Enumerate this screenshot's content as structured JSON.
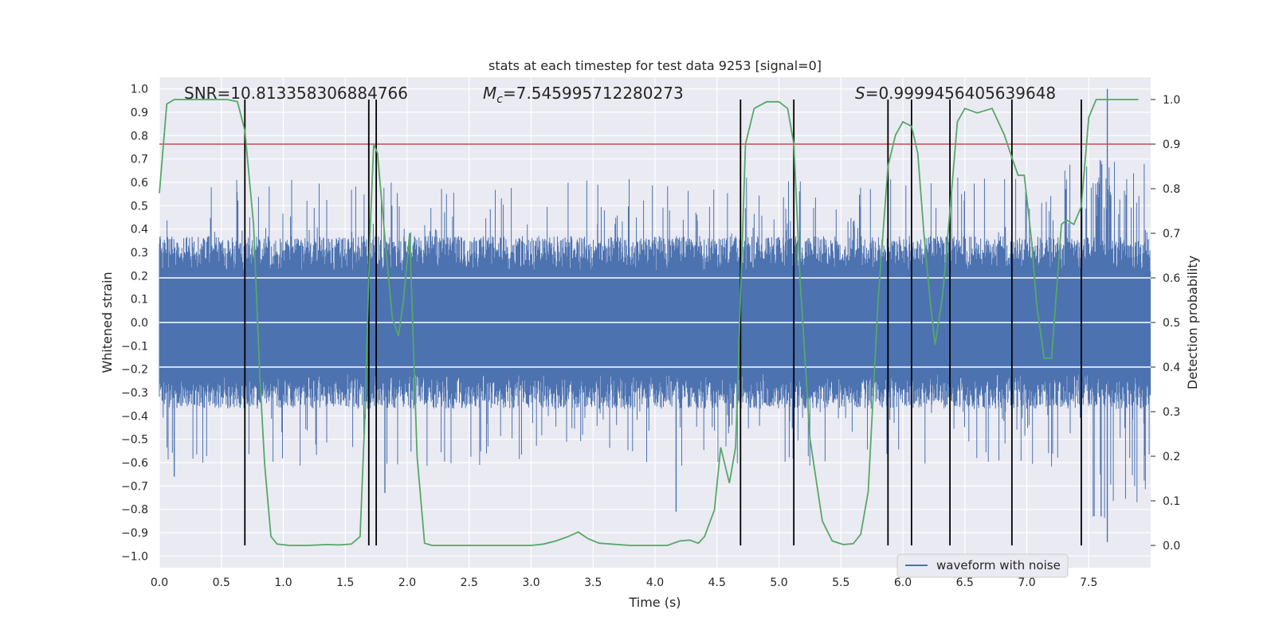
{
  "chart_data": {
    "type": "line",
    "title": "stats at each timestep for test data 9253 [signal=0]",
    "xlabel": "Time (s)",
    "ylabel_left": "Whitened strain",
    "ylabel_right": "Detection probability",
    "xlim": [
      0,
      8.0
    ],
    "ylim_left": [
      -1.05,
      1.05
    ],
    "ylim_right": [
      -0.05,
      1.05
    ],
    "x_ticks": [
      0.0,
      0.5,
      1.0,
      1.5,
      2.0,
      2.5,
      3.0,
      3.5,
      4.0,
      4.5,
      5.0,
      5.5,
      6.0,
      6.5,
      7.0,
      7.5
    ],
    "x_tick_labels": [
      "0.0",
      "0.5",
      "1.0",
      "1.5",
      "2.0",
      "2.5",
      "3.0",
      "3.5",
      "4.0",
      "4.5",
      "5.0",
      "5.5",
      "6.0",
      "6.5",
      "7.0",
      "7.5"
    ],
    "y_left_ticks": [
      1.0,
      0.9,
      0.8,
      0.7,
      0.6,
      0.5,
      0.4,
      0.3,
      0.2,
      0.1,
      0.0,
      -0.1,
      -0.2,
      -0.3,
      -0.4,
      -0.5,
      -0.6,
      -0.7,
      -0.8,
      -0.9,
      -1.0
    ],
    "y_left_tick_labels": [
      "1.0",
      "0.9",
      "0.8",
      "0.7",
      "0.6",
      "0.5",
      "0.4",
      "0.3",
      "0.2",
      "0.1",
      "0.0",
      "−0.1",
      "−0.2",
      "−0.3",
      "−0.4",
      "−0.5",
      "−0.6",
      "−0.7",
      "−0.8",
      "−0.9",
      "−1.0"
    ],
    "y_right_ticks": [
      1.0,
      0.9,
      0.8,
      0.7,
      0.6,
      0.5,
      0.4,
      0.3,
      0.2,
      0.1,
      0.0
    ],
    "y_right_tick_labels": [
      "1.0",
      "0.9",
      "0.8",
      "0.7",
      "0.6",
      "0.5",
      "0.4",
      "0.3",
      "0.2",
      "0.1",
      "0.0"
    ],
    "annotations": {
      "snr": "SNR=10.813358306884766",
      "mc_prefix": "M",
      "mc_sub": "c",
      "mc_value": "=7.545995712280273",
      "s_prefix": "S",
      "s_value": "=0.9999456405639648"
    },
    "legend": {
      "label": "waveform with noise",
      "placement": "bottom-right"
    },
    "threshold_right_axis": 0.9,
    "event_markers_x": [
      0.69,
      1.69,
      1.75,
      4.69,
      5.12,
      5.88,
      6.07,
      6.38,
      6.88,
      7.44
    ],
    "noise_series": {
      "name": "waveform with noise",
      "axis": "left",
      "duration_s": 8.0,
      "core_amplitude": 0.22,
      "typical_peak": 0.4,
      "max_peak": 1.0,
      "min_trough": -0.94
    },
    "probability_series": {
      "name": "detection probability",
      "axis": "right",
      "x": [
        0.0,
        0.06,
        0.12,
        0.25,
        0.4,
        0.55,
        0.63,
        0.69,
        0.76,
        0.81,
        0.85,
        0.9,
        0.95,
        1.05,
        1.2,
        1.35,
        1.45,
        1.55,
        1.62,
        1.66,
        1.7,
        1.73,
        1.76,
        1.81,
        1.88,
        1.93,
        1.97,
        2.02,
        2.08,
        2.14,
        2.2,
        2.5,
        3.0,
        3.1,
        3.2,
        3.3,
        3.38,
        3.46,
        3.55,
        3.8,
        4.1,
        4.2,
        4.28,
        4.35,
        4.4,
        4.48,
        4.53,
        4.6,
        4.65,
        4.69,
        4.73,
        4.8,
        4.9,
        5.0,
        5.07,
        5.12,
        5.17,
        5.25,
        5.35,
        5.43,
        5.52,
        5.6,
        5.66,
        5.72,
        5.8,
        5.88,
        5.94,
        6.0,
        6.07,
        6.12,
        6.17,
        6.22,
        6.26,
        6.32,
        6.38,
        6.44,
        6.5,
        6.6,
        6.72,
        6.82,
        6.88,
        6.93,
        6.98,
        7.04,
        7.08,
        7.14,
        7.2,
        7.28,
        7.32,
        7.38,
        7.44,
        7.5,
        7.56,
        7.62,
        7.7,
        7.9
      ],
      "y": [
        0.79,
        0.99,
        1.0,
        1.0,
        1.0,
        1.0,
        0.995,
        0.93,
        0.72,
        0.38,
        0.18,
        0.02,
        0.003,
        0.0,
        0.0,
        0.002,
        0.001,
        0.003,
        0.02,
        0.3,
        0.7,
        0.9,
        0.88,
        0.72,
        0.51,
        0.47,
        0.55,
        0.7,
        0.2,
        0.005,
        0.0,
        0.0,
        0.0,
        0.003,
        0.01,
        0.02,
        0.03,
        0.015,
        0.005,
        0.0,
        0.0,
        0.01,
        0.012,
        0.005,
        0.02,
        0.08,
        0.22,
        0.14,
        0.22,
        0.56,
        0.9,
        0.98,
        0.995,
        0.995,
        0.98,
        0.9,
        0.6,
        0.24,
        0.055,
        0.01,
        0.002,
        0.004,
        0.025,
        0.12,
        0.55,
        0.85,
        0.92,
        0.95,
        0.94,
        0.88,
        0.7,
        0.55,
        0.45,
        0.56,
        0.75,
        0.95,
        0.98,
        0.97,
        0.98,
        0.92,
        0.87,
        0.83,
        0.83,
        0.68,
        0.54,
        0.42,
        0.42,
        0.72,
        0.73,
        0.72,
        0.76,
        0.96,
        1.0,
        1.0,
        1.0,
        1.0
      ]
    },
    "colors": {
      "background": "#eaeaf2",
      "grid": "#ffffff",
      "noise": "#4c72b0",
      "probability": "#55a868",
      "threshold": "#c44e52",
      "markers": "#000000"
    }
  }
}
